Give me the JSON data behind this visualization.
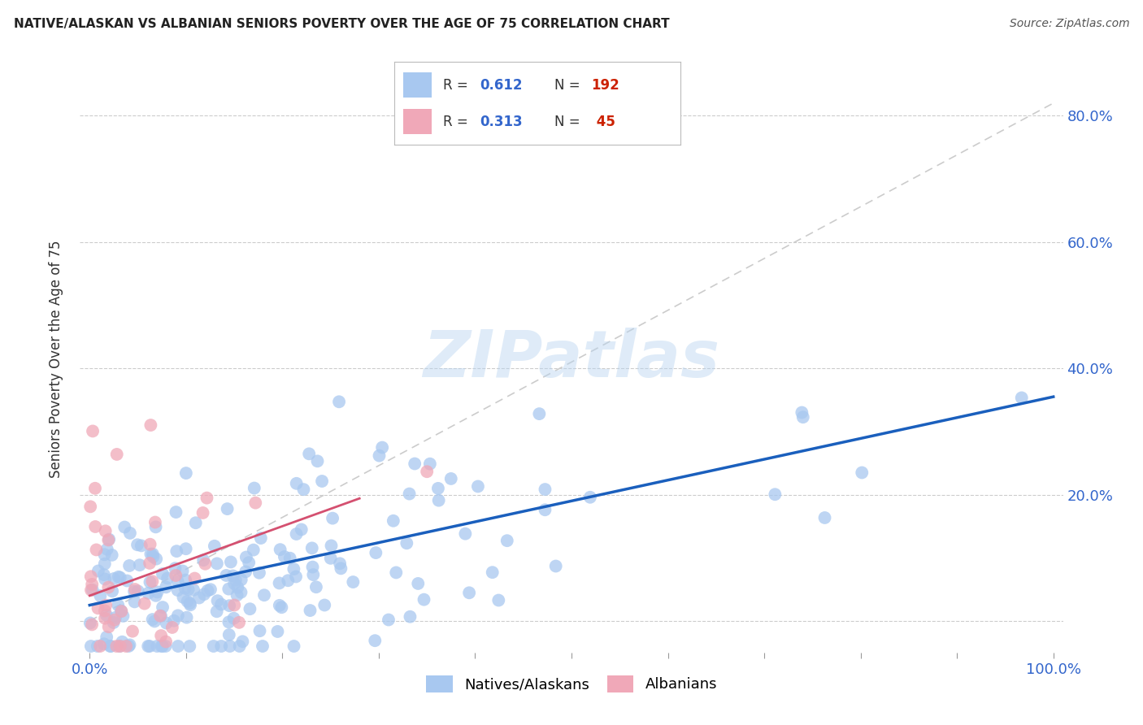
{
  "title": "NATIVE/ALASKAN VS ALBANIAN SENIORS POVERTY OVER THE AGE OF 75 CORRELATION CHART",
  "source": "Source: ZipAtlas.com",
  "ylabel": "Seniors Poverty Over the Age of 75",
  "xlim": [
    -0.01,
    1.01
  ],
  "ylim": [
    -0.05,
    0.88
  ],
  "native_color": "#a8c8f0",
  "albanian_color": "#f0a8b8",
  "native_line_color": "#1a5fbd",
  "albanian_line_color": "#d45070",
  "native_r": "0.612",
  "native_n": "192",
  "albanian_r": "0.313",
  "albanian_n": "45",
  "watermark": "ZIPatlas",
  "native_slope": 0.33,
  "native_intercept": 0.025,
  "albanian_slope": 0.55,
  "albanian_intercept": 0.04,
  "ref_line_color": "#cccccc",
  "legend_label_1": "R = 0.612   N = 192",
  "legend_label_2": "R = 0.313   N =  45",
  "bottom_label_1": "Natives/Alaskans",
  "bottom_label_2": "Albanians"
}
